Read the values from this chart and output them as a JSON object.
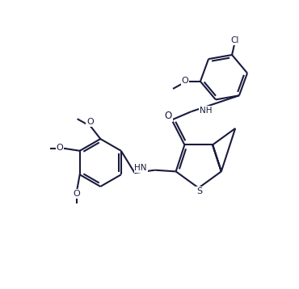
{
  "background_color": "#ffffff",
  "line_color": "#1a1a3e",
  "line_width": 1.5,
  "figsize": [
    3.7,
    3.58
  ],
  "dpi": 100,
  "xlim": [
    -1.0,
    9.5
  ],
  "ylim": [
    -0.5,
    9.5
  ]
}
